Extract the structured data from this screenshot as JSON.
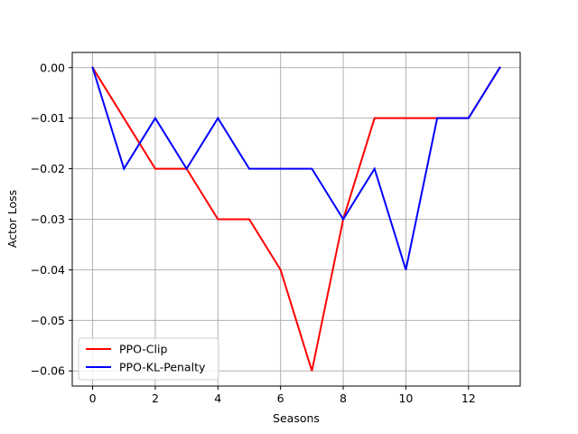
{
  "chart_data": {
    "type": "line",
    "xlabel": "Seasons",
    "ylabel": "Actor Loss",
    "xlim": [
      -0.65,
      13.65
    ],
    "ylim": [
      -0.063,
      0.003
    ],
    "xticks": [
      0,
      2,
      4,
      6,
      8,
      10,
      12
    ],
    "yticks": [
      0.0,
      -0.01,
      -0.02,
      -0.03,
      -0.04,
      -0.05,
      -0.06
    ],
    "xtick_labels": [
      "0",
      "2",
      "4",
      "6",
      "8",
      "10",
      "12"
    ],
    "ytick_labels": [
      "0.00",
      "−0.01",
      "−0.02",
      "−0.03",
      "−0.04",
      "−0.05",
      "−0.06"
    ],
    "grid": true,
    "legend_position": "lower-left",
    "x": [
      0,
      1,
      2,
      3,
      4,
      5,
      6,
      7,
      8,
      9,
      10,
      11,
      12,
      13
    ],
    "series": [
      {
        "name": "PPO-Clip",
        "color": "#ff0000",
        "values": [
          0.0,
          -0.01,
          -0.02,
          -0.02,
          -0.03,
          -0.03,
          -0.04,
          -0.06,
          -0.03,
          -0.01,
          -0.01,
          -0.01,
          -0.01,
          0.0
        ]
      },
      {
        "name": "PPO-KL-Penalty",
        "color": "#0000ff",
        "values": [
          0.0,
          -0.02,
          -0.01,
          -0.02,
          -0.01,
          -0.02,
          -0.02,
          -0.02,
          -0.03,
          -0.02,
          -0.04,
          -0.01,
          -0.01,
          0.0
        ]
      }
    ]
  }
}
